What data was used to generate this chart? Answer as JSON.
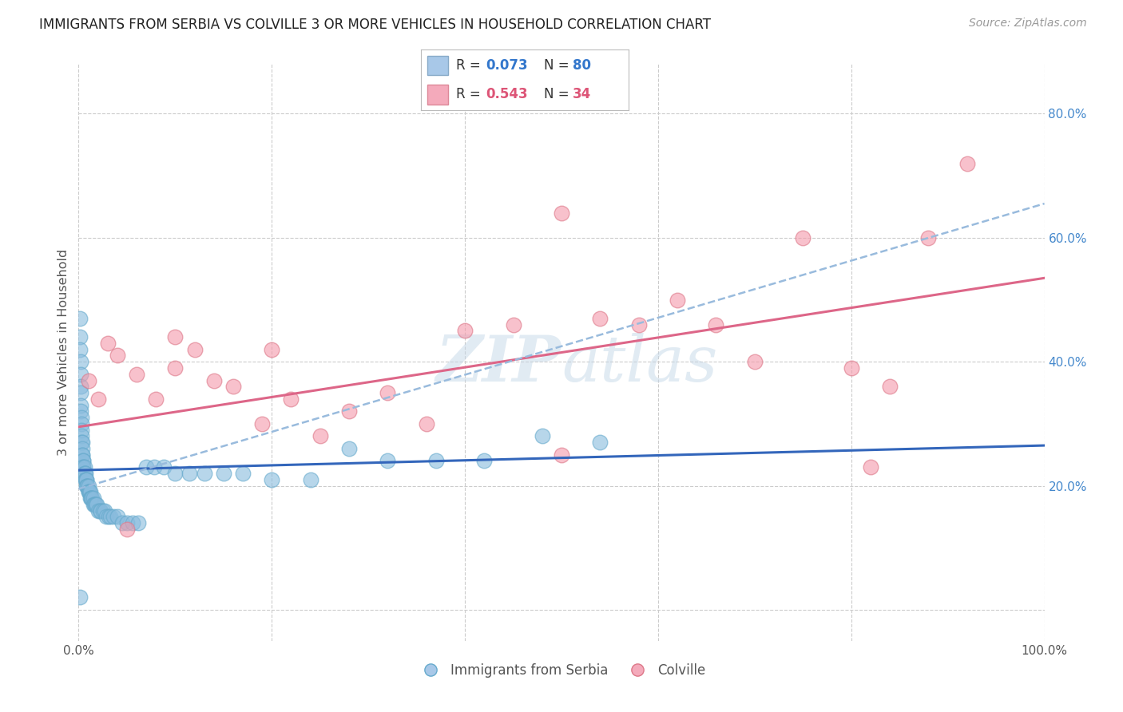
{
  "title": "IMMIGRANTS FROM SERBIA VS COLVILLE 3 OR MORE VEHICLES IN HOUSEHOLD CORRELATION CHART",
  "source": "Source: ZipAtlas.com",
  "ylabel": "3 or more Vehicles in Household",
  "yticks": [
    0.0,
    0.2,
    0.4,
    0.6,
    0.8
  ],
  "ytick_labels": [
    "",
    "20.0%",
    "40.0%",
    "60.0%",
    "80.0%"
  ],
  "xticks": [
    0.0,
    0.2,
    0.4,
    0.6,
    0.8,
    1.0
  ],
  "xtick_labels": [
    "0.0%",
    "",
    "",
    "",
    "",
    "100.0%"
  ],
  "xlim": [
    0.0,
    1.0
  ],
  "ylim": [
    -0.05,
    0.88
  ],
  "background_color": "#ffffff",
  "grid_color": "#cccccc",
  "scatter_blue_color": "#88bbdd",
  "scatter_pink_color": "#f499aa",
  "scatter_blue_edge": "#66aacc",
  "scatter_pink_edge": "#dd7788",
  "line_blue_color": "#3366bb",
  "line_pink_color": "#dd6688",
  "dashed_line_color": "#99bbdd",
  "watermark_color": "#c5d8e8",
  "watermark_alpha": 0.5,
  "blue_r": 0.073,
  "blue_n": 80,
  "pink_r": 0.543,
  "pink_n": 34,
  "blue_line_x": [
    0.0,
    1.0
  ],
  "blue_line_y": [
    0.225,
    0.265
  ],
  "pink_line_x": [
    0.0,
    1.0
  ],
  "pink_line_y": [
    0.295,
    0.535
  ],
  "dash_line_x": [
    0.0,
    1.0
  ],
  "dash_line_y": [
    0.195,
    0.655
  ],
  "blue_points_x": [
    0.001,
    0.001,
    0.001,
    0.002,
    0.002,
    0.002,
    0.002,
    0.002,
    0.002,
    0.003,
    0.003,
    0.003,
    0.003,
    0.003,
    0.004,
    0.004,
    0.004,
    0.004,
    0.005,
    0.005,
    0.005,
    0.005,
    0.006,
    0.006,
    0.006,
    0.007,
    0.007,
    0.007,
    0.008,
    0.008,
    0.008,
    0.009,
    0.009,
    0.01,
    0.01,
    0.01,
    0.011,
    0.011,
    0.012,
    0.012,
    0.013,
    0.013,
    0.014,
    0.015,
    0.015,
    0.016,
    0.017,
    0.018,
    0.019,
    0.02,
    0.022,
    0.023,
    0.025,
    0.027,
    0.029,
    0.031,
    0.033,
    0.036,
    0.04,
    0.045,
    0.05,
    0.056,
    0.062,
    0.07,
    0.078,
    0.088,
    0.1,
    0.115,
    0.13,
    0.15,
    0.17,
    0.2,
    0.24,
    0.28,
    0.32,
    0.37,
    0.42,
    0.48,
    0.54,
    0.001
  ],
  "blue_points_y": [
    0.47,
    0.44,
    0.42,
    0.4,
    0.38,
    0.36,
    0.35,
    0.33,
    0.32,
    0.31,
    0.3,
    0.29,
    0.28,
    0.27,
    0.27,
    0.26,
    0.25,
    0.25,
    0.24,
    0.24,
    0.23,
    0.23,
    0.23,
    0.22,
    0.22,
    0.22,
    0.21,
    0.21,
    0.21,
    0.21,
    0.2,
    0.2,
    0.2,
    0.2,
    0.19,
    0.19,
    0.19,
    0.19,
    0.19,
    0.18,
    0.18,
    0.18,
    0.18,
    0.18,
    0.17,
    0.17,
    0.17,
    0.17,
    0.17,
    0.16,
    0.16,
    0.16,
    0.16,
    0.16,
    0.15,
    0.15,
    0.15,
    0.15,
    0.15,
    0.14,
    0.14,
    0.14,
    0.14,
    0.23,
    0.23,
    0.23,
    0.22,
    0.22,
    0.22,
    0.22,
    0.22,
    0.21,
    0.21,
    0.26,
    0.24,
    0.24,
    0.24,
    0.28,
    0.27,
    0.02
  ],
  "pink_points_x": [
    0.01,
    0.02,
    0.03,
    0.04,
    0.05,
    0.06,
    0.08,
    0.1,
    0.12,
    0.14,
    0.16,
    0.19,
    0.22,
    0.25,
    0.28,
    0.32,
    0.36,
    0.4,
    0.45,
    0.5,
    0.54,
    0.58,
    0.62,
    0.66,
    0.7,
    0.75,
    0.8,
    0.84,
    0.88,
    0.92,
    0.1,
    0.2,
    0.5,
    0.82
  ],
  "pink_points_y": [
    0.37,
    0.34,
    0.43,
    0.41,
    0.13,
    0.38,
    0.34,
    0.39,
    0.42,
    0.37,
    0.36,
    0.3,
    0.34,
    0.28,
    0.32,
    0.35,
    0.3,
    0.45,
    0.46,
    0.64,
    0.47,
    0.46,
    0.5,
    0.46,
    0.4,
    0.6,
    0.39,
    0.36,
    0.6,
    0.72,
    0.44,
    0.42,
    0.25,
    0.23
  ]
}
